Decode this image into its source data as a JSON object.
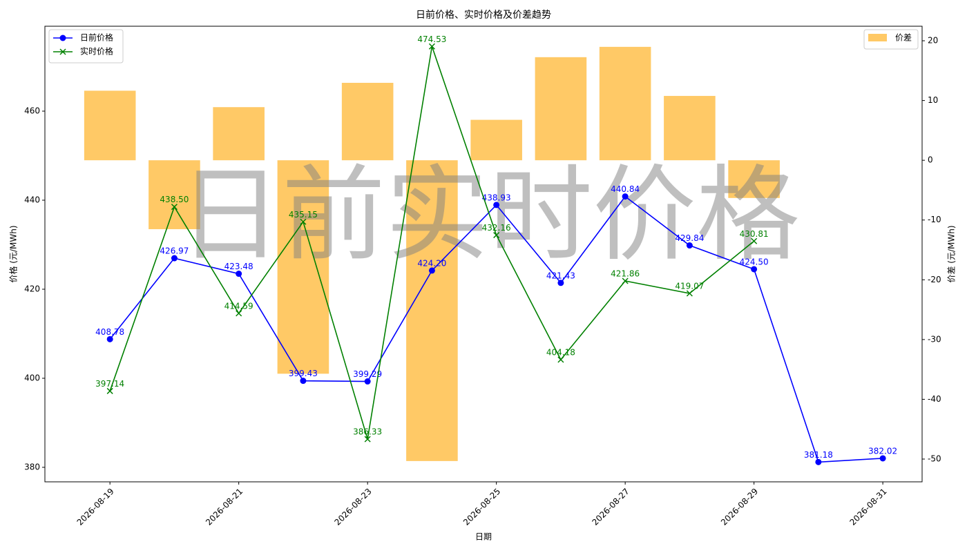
{
  "chart_data": {
    "type": "line",
    "title": "日前价格、实时价格及价差趋势",
    "xlabel": "日期",
    "ylabel": "价格 (元/MWh)",
    "y2label": "价差 (元/MWh)",
    "watermark": "日前实时价格",
    "x": [
      "2026-08-19",
      "2026-08-20",
      "2026-08-21",
      "2026-08-22",
      "2026-08-23",
      "2026-08-24",
      "2026-08-25",
      "2026-08-26",
      "2026-08-27",
      "2026-08-28",
      "2026-08-29",
      "2026-08-30",
      "2026-08-31"
    ],
    "xticks": [
      "2026-08-19",
      "2026-08-21",
      "2026-08-23",
      "2026-08-25",
      "2026-08-27",
      "2026-08-29",
      "2026-08-31"
    ],
    "ylim": [
      376.74,
      479.07
    ],
    "yticks": [
      380,
      400,
      420,
      440,
      460
    ],
    "y2lim": [
      -53.81,
      22.43
    ],
    "y2ticks": [
      -50,
      -40,
      -30,
      -20,
      -10,
      0,
      10,
      20
    ],
    "legend": "upper left",
    "legend2": "upper right",
    "series": [
      {
        "name": "日前价格",
        "color": "#0000ff",
        "marker": "o",
        "values": [
          408.78,
          426.97,
          423.48,
          399.43,
          399.29,
          424.2,
          438.93,
          421.43,
          440.84,
          429.84,
          424.5,
          381.18,
          382.02
        ],
        "value_labels": [
          "408.78",
          "426.97",
          "423.48",
          "399.43",
          "399.29",
          "424.20",
          "438.93",
          "421.43",
          "440.84",
          "429.84",
          "424.50",
          "381.18",
          "382.02"
        ]
      },
      {
        "name": "实时价格",
        "color": "#008000",
        "marker": "x",
        "values": [
          397.14,
          438.5,
          414.59,
          435.15,
          386.33,
          474.53,
          432.16,
          404.18,
          421.86,
          419.07,
          430.81,
          null,
          null
        ],
        "value_labels": [
          "397.14",
          "438.50",
          "414.59",
          "435.15",
          "386.33",
          "474.53",
          "432.16",
          "404.18",
          "421.86",
          "419.07",
          "430.81",
          null,
          null
        ]
      },
      {
        "name": "价差",
        "type": "bar",
        "axis": "y2",
        "color": "#ffa500",
        "opacity": 0.6,
        "values": [
          11.64,
          -11.53,
          8.89,
          -35.72,
          12.96,
          -50.33,
          6.77,
          17.25,
          18.98,
          10.77,
          -6.31,
          null,
          null
        ]
      }
    ]
  }
}
